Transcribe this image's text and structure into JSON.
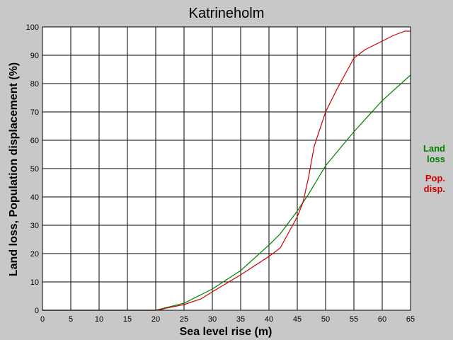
{
  "chart_data": {
    "type": "line",
    "title": "Katrineholm",
    "xlabel": "Sea level rise (m)",
    "ylabel": "Land loss, Population displacement (%)",
    "xlim": [
      0,
      65
    ],
    "ylim": [
      0,
      100
    ],
    "xticks": [
      0,
      5,
      10,
      15,
      20,
      25,
      30,
      35,
      40,
      45,
      50,
      55,
      60,
      65
    ],
    "yticks": [
      0,
      10,
      20,
      30,
      40,
      50,
      60,
      70,
      80,
      90,
      100
    ],
    "grid": true,
    "legend_position": "right",
    "series": [
      {
        "name_lines": [
          "Land",
          "loss"
        ],
        "color": "#008000",
        "x": [
          0,
          20,
          21,
          22,
          25,
          30,
          35,
          40,
          42,
          45,
          47,
          50,
          55,
          60,
          65
        ],
        "y": [
          0,
          0,
          0.5,
          1,
          2.5,
          7.5,
          14,
          23,
          27,
          35,
          41,
          51,
          63,
          74,
          83
        ]
      },
      {
        "name_lines": [
          "Pop.",
          "disp."
        ],
        "color": "#cc0000",
        "x": [
          0,
          20,
          21,
          22,
          25,
          28,
          30,
          35,
          40,
          42,
          45,
          46,
          47,
          48,
          50,
          52,
          55,
          57,
          60,
          62,
          64,
          65
        ],
        "y": [
          0,
          0,
          0.3,
          0.8,
          2,
          4,
          6.5,
          12.5,
          19,
          22,
          33,
          38,
          47,
          58,
          70,
          78,
          89,
          92,
          95,
          97,
          98.5,
          98.5
        ]
      }
    ]
  }
}
